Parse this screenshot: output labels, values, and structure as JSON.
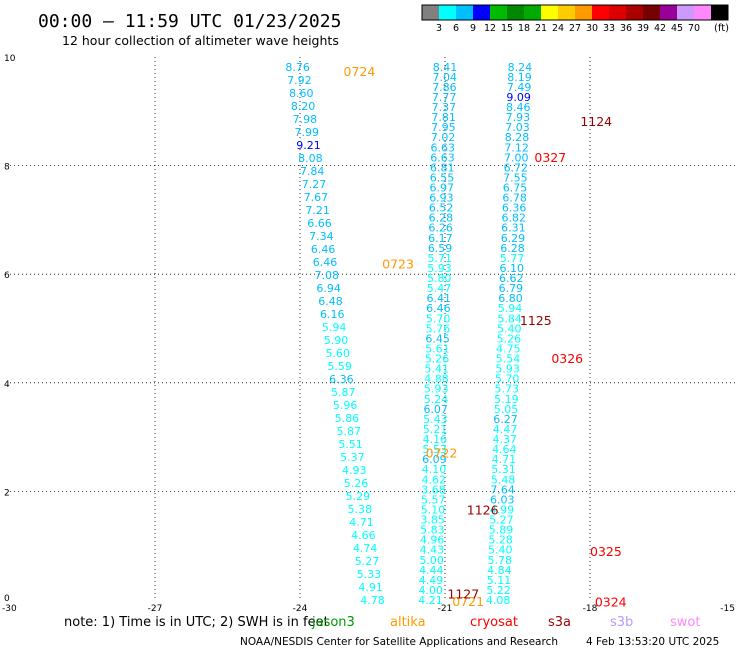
{
  "header": {
    "title": "00:00 — 11:59 UTC 01/23/2025",
    "subtitle": "12 hour collection of altimeter wave heights"
  },
  "colorbar": {
    "unit": "(ft)",
    "ticks": [
      "3",
      "6",
      "9",
      "12",
      "15",
      "18",
      "21",
      "24",
      "27",
      "30",
      "33",
      "36",
      "39",
      "42",
      "45",
      "70"
    ],
    "colors": [
      "#808080",
      "#00ffff",
      "#00bfff",
      "#0000ff",
      "#00bb00",
      "#008800",
      "#00aa00",
      "#ffff00",
      "#ffcc00",
      "#ff9900",
      "#ff0000",
      "#dd0000",
      "#aa0000",
      "#770000",
      "#990099",
      "#cc99ff",
      "#ff88ff",
      "#000000"
    ]
  },
  "footer": {
    "note": "note:  1) Time is in UTC; 2) SWH is in feet",
    "credit": "NOAA/NESDIS Center for Satellite Applications and Research",
    "timestamp": "4 Feb 13:53:20 UTC 2025",
    "satellites": [
      {
        "name": "jason3",
        "color": "#009900"
      },
      {
        "name": "altika",
        "color": "#ff9900"
      },
      {
        "name": "cryosat",
        "color": "#ff0000"
      },
      {
        "name": "s3a",
        "color": "#990000"
      },
      {
        "name": "s3b",
        "color": "#bb99ff"
      },
      {
        "name": "swot",
        "color": "#ff88ff"
      }
    ]
  },
  "chart_data": {
    "type": "scatter",
    "xlim": [
      -30,
      -15
    ],
    "ylim": [
      0,
      10
    ],
    "x_ticks": [
      "-30",
      "-27",
      "-24",
      "-21",
      "-18",
      "-15"
    ],
    "y_ticks": [
      "0",
      "2",
      "4",
      "6",
      "8",
      "10"
    ],
    "grid": true,
    "tracks": [
      {
        "x0": -24.05,
        "y0": 9.82,
        "x1": -22.5,
        "y1": 0.0,
        "values": [
          "8.76",
          "7.92",
          "8.60",
          "8.20",
          "7.98",
          "7.99",
          "9.21",
          "8.08",
          "7.84",
          "7.27",
          "7.67",
          "7.21",
          "6.66",
          "7.34",
          "6.46",
          "6.46",
          "7.08",
          "6.94",
          "6.48",
          "6.16",
          "5.94",
          "5.90",
          "5.60",
          "5.59",
          "6.36",
          "5.87",
          "5.96",
          "5.86",
          "5.87",
          "5.51",
          "5.37",
          "4.93",
          "5.26",
          "5.29",
          "5.38",
          "4.71",
          "4.66",
          "4.74",
          "5.27",
          "5.33",
          "4.91",
          "4.78"
        ]
      },
      {
        "x0": -21.0,
        "y0": 9.82,
        "x1": -21.3,
        "y1": 0.0,
        "values": [
          "8.41",
          "7.04",
          "7.86",
          "7.77",
          "7.37",
          "7.81",
          "7.95",
          "7.02",
          "6.63",
          "6.63",
          "6.81",
          "6.55",
          "6.97",
          "6.93",
          "6.52",
          "6.28",
          "6.26",
          "6.17",
          "6.59",
          "5.71",
          "5.93",
          "5.80",
          "5.47",
          "6.41",
          "6.46",
          "5.70",
          "5.76",
          "6.45",
          "5.61",
          "5.26",
          "5.41",
          "4.88",
          "5.93",
          "5.24",
          "6.07",
          "5.43",
          "5.21",
          "4.16",
          "5.53",
          "6.09",
          "4.10",
          "4.62",
          "3.68",
          "5.57",
          "5.10",
          "3.85",
          "5.83",
          "4.96",
          "4.43",
          "5.00",
          "4.44",
          "4.49",
          "4.00",
          "4.21"
        ]
      },
      {
        "x0": -19.45,
        "y0": 9.82,
        "x1": -19.9,
        "y1": 0.0,
        "values": [
          "8.24",
          "8.19",
          "7.49",
          "9.09",
          "8.46",
          "7.93",
          "7.03",
          "8.28",
          "7.12",
          "7.00",
          "6.72",
          "7.55",
          "6.75",
          "6.78",
          "6.36",
          "6.82",
          "6.31",
          "6.29",
          "6.28",
          "5.77",
          "6.10",
          "6.62",
          "6.79",
          "6.80",
          "5.94",
          "5.84",
          "5.40",
          "5.26",
          "4.75",
          "5.54",
          "5.93",
          "5.70",
          "5.73",
          "5.19",
          "5.05",
          "6.27",
          "4.47",
          "4.37",
          "4.64",
          "4.71",
          "5.31",
          "5.48",
          "7.64",
          "6.03",
          "4.99",
          "5.27",
          "5.89",
          "5.28",
          "5.40",
          "5.78",
          "4.84",
          "5.11",
          "5.22",
          "4.08"
        ]
      }
    ],
    "pass_labels": [
      {
        "label": "0724",
        "x": -23.1,
        "y": 9.72,
        "color": "#ff9900"
      },
      {
        "label": "0723",
        "x": -22.3,
        "y": 6.18,
        "color": "#ff9900"
      },
      {
        "label": "0722",
        "x": -21.4,
        "y": 2.7,
        "color": "#ff9900"
      },
      {
        "label": "0721",
        "x": -20.85,
        "y": -0.04,
        "color": "#ff9900"
      },
      {
        "label": "1124",
        "x": -18.2,
        "y": 8.8,
        "color": "#990000"
      },
      {
        "label": "1125",
        "x": -19.45,
        "y": 5.14,
        "color": "#990000"
      },
      {
        "label": "1126",
        "x": -20.55,
        "y": 1.65,
        "color": "#990000"
      },
      {
        "label": "1127",
        "x": -20.95,
        "y": 0.1,
        "color": "#990000"
      },
      {
        "label": "0327",
        "x": -19.15,
        "y": 8.14,
        "color": "#ff0000"
      },
      {
        "label": "0326",
        "x": -18.8,
        "y": 4.44,
        "color": "#ff0000"
      },
      {
        "label": "0325",
        "x": -18.0,
        "y": 0.88,
        "color": "#ff0000"
      },
      {
        "label": "0324",
        "x": -17.9,
        "y": -0.05,
        "color": "#ff0000"
      }
    ]
  }
}
